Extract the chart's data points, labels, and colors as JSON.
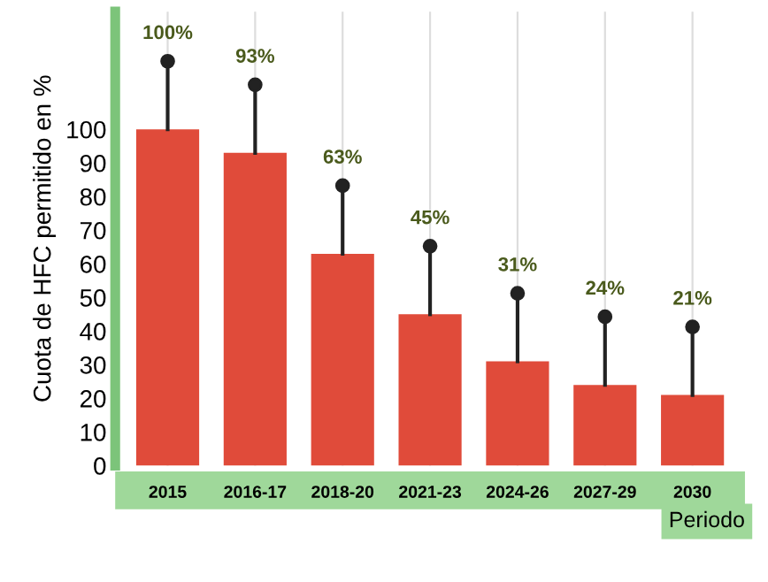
{
  "chart_data": {
    "type": "bar",
    "ylabel": "Cuota de HFC permitido en %",
    "xlabel": "Periodo",
    "categories": [
      "2015",
      "2016-17",
      "2018-20",
      "2021-23",
      "2024-26",
      "2027-29",
      "2030"
    ],
    "values": [
      100,
      93,
      63,
      45,
      31,
      24,
      21
    ],
    "value_labels": [
      "100%",
      "93%",
      "63%",
      "45%",
      "31%",
      "24%",
      "21%"
    ],
    "color": "#e04b3a",
    "ylim": [
      0,
      135
    ],
    "yticks": [
      0,
      10,
      20,
      30,
      40,
      50,
      60,
      70,
      80,
      90,
      100
    ],
    "grid": "x",
    "legend": false
  }
}
